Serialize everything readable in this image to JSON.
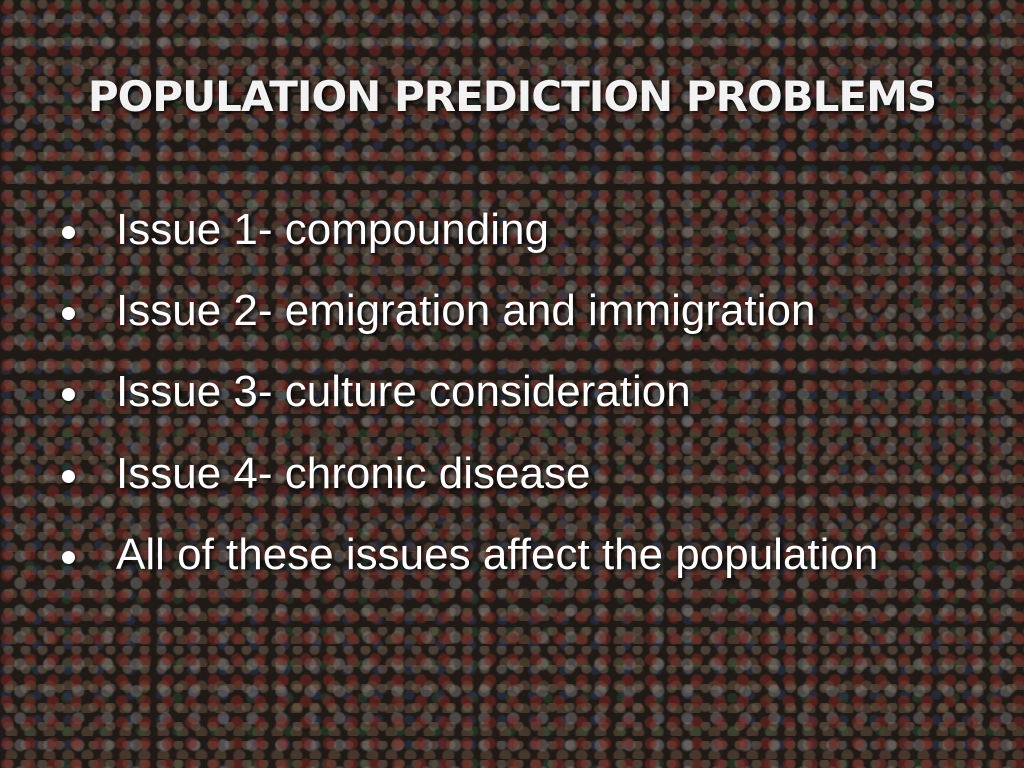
{
  "title": "POPULATION PREDICTION PROBLEMS",
  "bullets": [
    "Issue 1- compounding",
    "Issue 2- emigration and immigration",
    "Issue 3- culture consideration",
    "Issue 4- chronic disease",
    "All of these issues affect the population"
  ]
}
